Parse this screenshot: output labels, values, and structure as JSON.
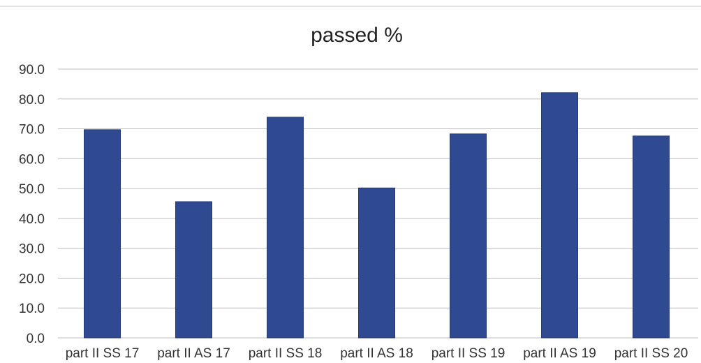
{
  "colors": {
    "bar": "#304a91",
    "bar_edge": "#243a77"
  },
  "chart_data": {
    "type": "bar",
    "title": "passed %",
    "xlabel": "",
    "ylabel": "",
    "categories": [
      "part II SS 17",
      "part II AS 17",
      "part II SS 18",
      "part II AS 18",
      "part II SS 19",
      "part II AS 19",
      "part II SS 20"
    ],
    "values": [
      69.7,
      45.6,
      73.9,
      50.2,
      68.3,
      82.1,
      67.6
    ],
    "ylim": [
      0,
      90
    ],
    "yticks": [
      0,
      10,
      20,
      30,
      40,
      50,
      60,
      70,
      80,
      90
    ],
    "ytick_labels": [
      "0.0",
      "10.0",
      "20.0",
      "30.0",
      "40.0",
      "50.0",
      "60.0",
      "70.0",
      "80.0",
      "90.0"
    ],
    "grid": true,
    "legend": "none"
  }
}
